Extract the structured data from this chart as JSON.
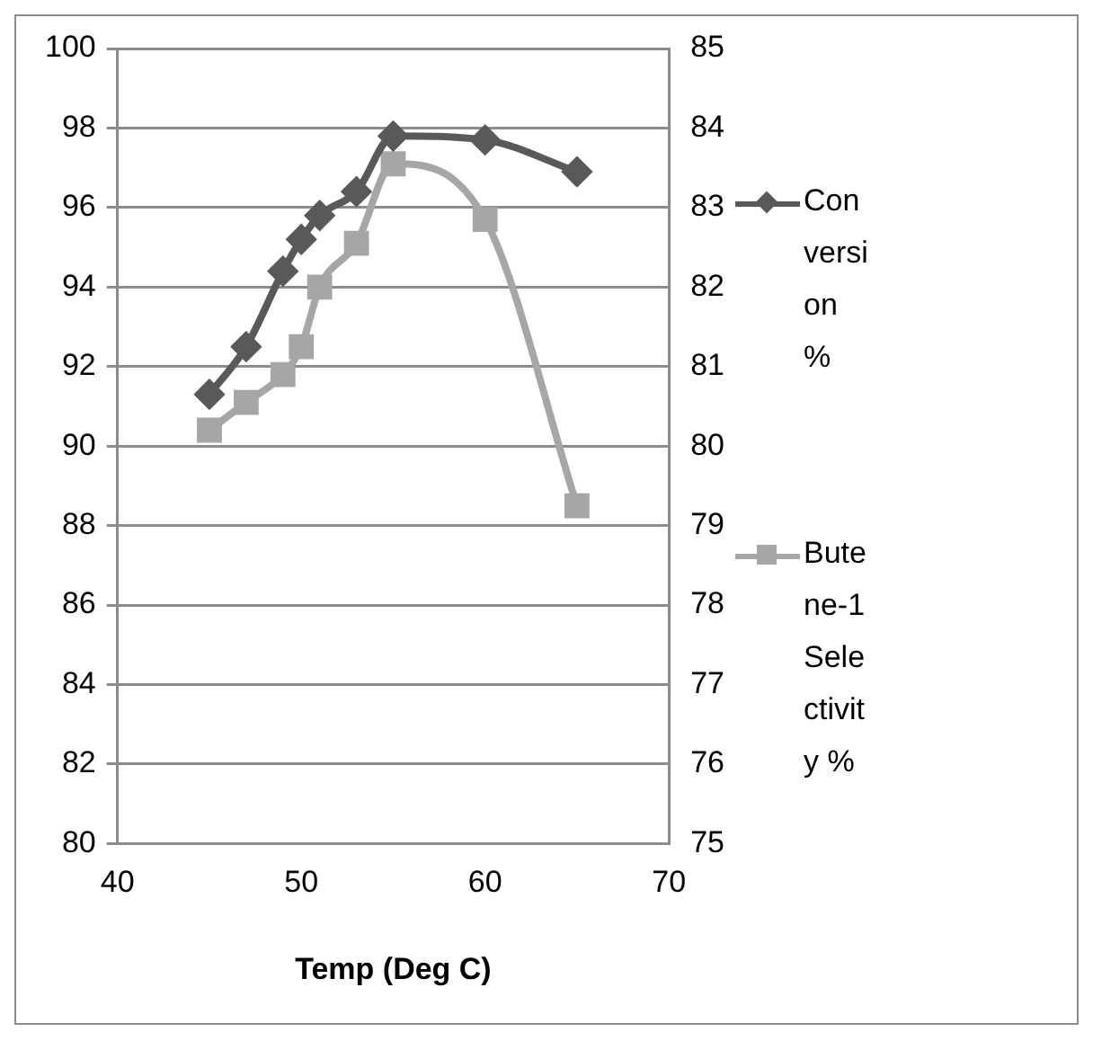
{
  "chart_data": {
    "type": "line",
    "xlabel": "Temp (Deg C)",
    "x": [
      45,
      47,
      49,
      50,
      51,
      53,
      55,
      60,
      65
    ],
    "series": [
      {
        "name": "Conversion %",
        "color": "#595959",
        "marker": "diamond",
        "values": [
          91.3,
          92.5,
          94.4,
          95.2,
          95.8,
          96.4,
          97.8,
          97.7,
          96.9
        ]
      },
      {
        "name": "Butene-1 Selectivity %",
        "color": "#a6a6a6",
        "marker": "square",
        "axis": "y2",
        "values": [
          80.2,
          80.55,
          80.9,
          81.25,
          82.0,
          82.55,
          83.55,
          82.85,
          79.25
        ]
      }
    ],
    "xlim": [
      40,
      70
    ],
    "xticks": [
      40,
      50,
      60,
      70
    ],
    "ylim": [
      80,
      100
    ],
    "yticks": [
      80,
      82,
      84,
      86,
      88,
      90,
      92,
      94,
      96,
      98,
      100
    ],
    "y2lim": [
      75,
      85
    ],
    "y2ticks": [
      75,
      76,
      77,
      78,
      79,
      80,
      81,
      82,
      83,
      84,
      85
    ],
    "grid": "y",
    "legend": "right"
  }
}
